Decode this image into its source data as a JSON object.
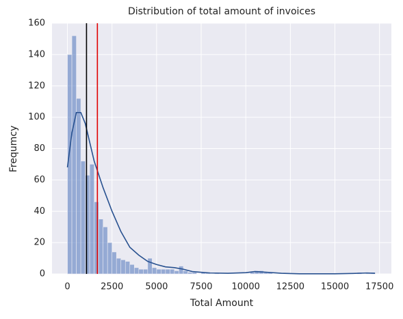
{
  "chart_data": {
    "type": "histogram",
    "title": "Distribution of total amount of invoices",
    "xlabel": "Total Amount",
    "ylabel": "Frequmcy",
    "bins": [
      0,
      250,
      500,
      750,
      1000,
      1250,
      1500,
      1750,
      2000,
      2250,
      2500,
      2750,
      3000,
      3250,
      3500,
      3750,
      4000,
      4250,
      4500,
      4750,
      5000,
      5250,
      5500,
      5750,
      6000,
      6250,
      6500,
      6750,
      7000,
      7250,
      7500,
      7750,
      8000,
      8250,
      8500,
      8750,
      9000,
      9250,
      9500,
      9750,
      10000,
      10250,
      10500,
      10750,
      11000,
      11250,
      11500,
      11750,
      12000,
      12250,
      12500,
      12750,
      13000,
      13250,
      13500,
      13750,
      14000,
      14250,
      14500,
      14750,
      15000,
      15250,
      15500,
      15750,
      16000,
      16250,
      16500,
      16750,
      17000,
      17250,
      17500
    ],
    "values": [
      140,
      152,
      112,
      72,
      63,
      70,
      46,
      35,
      30,
      20,
      14,
      10,
      9,
      8,
      6,
      4,
      3,
      3,
      10,
      4,
      3,
      3,
      3,
      3,
      2,
      5,
      2,
      1,
      1,
      0,
      1,
      1,
      0,
      1,
      0,
      0,
      0,
      0,
      0,
      0,
      0,
      1,
      2,
      2,
      1,
      1,
      0,
      0,
      0,
      0,
      0,
      0,
      0,
      0,
      0,
      0,
      0,
      0,
      0,
      0,
      0,
      0,
      0,
      0,
      0,
      1,
      0,
      1,
      1,
      0
    ],
    "color": "#5b7fbf",
    "kde": {
      "color": "#27508f",
      "x": [
        0,
        250,
        500,
        750,
        1000,
        1500,
        2000,
        2500,
        3000,
        3500,
        4000,
        4500,
        5000,
        5500,
        6000,
        6500,
        7000,
        8000,
        9000,
        10000,
        10500,
        11000,
        12000,
        13000,
        14000,
        15000,
        16000,
        16800,
        17250
      ],
      "values": [
        68,
        90,
        103,
        103,
        96,
        72,
        55,
        40,
        27,
        17,
        12,
        8,
        6,
        4.5,
        4,
        3,
        1.5,
        0.6,
        0.4,
        0.8,
        1.5,
        1.2,
        0.4,
        0.1,
        0.1,
        0.1,
        0.3,
        0.6,
        0.4
      ]
    },
    "vlines": [
      {
        "value": 1070,
        "color": "#000000"
      },
      {
        "value": 1680,
        "color": "#e00000"
      }
    ],
    "xlim": [
      -865,
      18165
    ],
    "ylim": [
      0,
      160
    ],
    "xticks": [
      0,
      2500,
      5000,
      7500,
      10000,
      12500,
      15000,
      17500
    ],
    "yticks": [
      0,
      20,
      40,
      60,
      80,
      100,
      120,
      140,
      160
    ],
    "grid": true
  }
}
